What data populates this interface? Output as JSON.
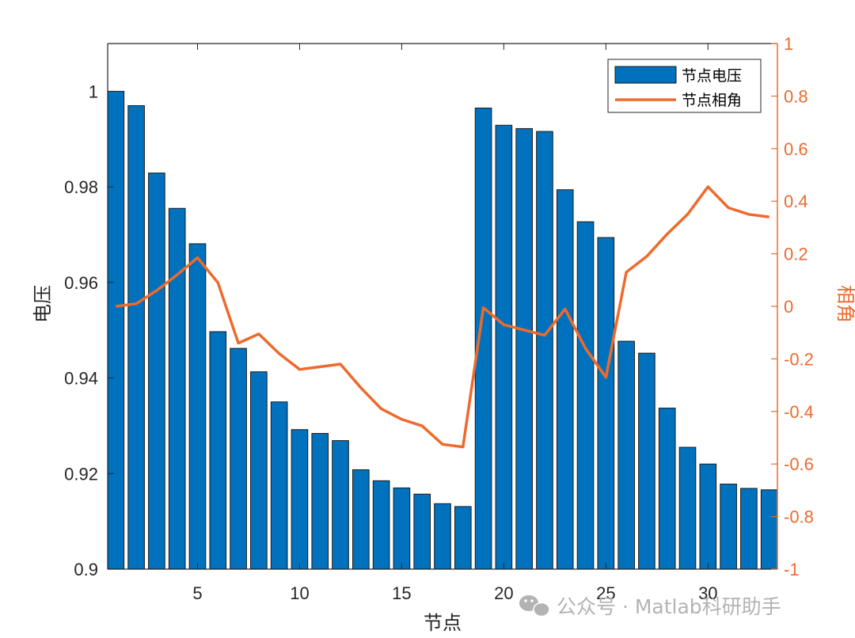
{
  "chart_data": {
    "type": "bar+line",
    "xlabel": "节点",
    "ylabel_left": "电压",
    "ylabel_right": "相角",
    "xlim": [
      0.6,
      33.4
    ],
    "ylim_left": [
      0.9,
      1.01
    ],
    "ylim_right": [
      -1,
      1
    ],
    "x_ticks": [
      5,
      10,
      15,
      20,
      25,
      30
    ],
    "y_left_ticks": [
      0.9,
      0.92,
      0.94,
      0.96,
      0.98,
      1
    ],
    "y_left_tick_labels": [
      "0.9",
      "0.92",
      "0.94",
      "0.96",
      "0.98",
      "1"
    ],
    "y_right_ticks": [
      -1,
      -0.8,
      -0.6,
      -0.4,
      -0.2,
      0,
      0.2,
      0.4,
      0.6,
      0.8,
      1
    ],
    "y_right_tick_labels": [
      "-1",
      "-0.8",
      "-0.6",
      "-0.4",
      "-0.2",
      "0",
      "0.2",
      "0.4",
      "0.6",
      "0.8",
      "1"
    ],
    "categories": [
      1,
      2,
      3,
      4,
      5,
      6,
      7,
      8,
      9,
      10,
      11,
      12,
      13,
      14,
      15,
      16,
      17,
      18,
      19,
      20,
      21,
      22,
      23,
      24,
      25,
      26,
      27,
      28,
      29,
      30,
      31,
      32,
      33
    ],
    "series": [
      {
        "name": "节点电压",
        "type": "bar",
        "axis": "left",
        "color": "#0072BD",
        "values": [
          1.0,
          0.997,
          0.9829,
          0.9755,
          0.9681,
          0.9497,
          0.9462,
          0.9413,
          0.935,
          0.9292,
          0.9284,
          0.9269,
          0.9208,
          0.9185,
          0.917,
          0.9157,
          0.9137,
          0.9131,
          0.9965,
          0.9929,
          0.9922,
          0.9916,
          0.9794,
          0.9727,
          0.9694,
          0.9477,
          0.9452,
          0.9337,
          0.9255,
          0.922,
          0.9178,
          0.9169,
          0.9166
        ]
      },
      {
        "name": "节点相角",
        "type": "line",
        "axis": "right",
        "color": "#EE6A2C",
        "values": [
          0.0,
          0.01,
          0.06,
          0.12,
          0.185,
          0.09,
          -0.14,
          -0.105,
          -0.18,
          -0.24,
          -0.23,
          -0.22,
          -0.31,
          -0.39,
          -0.43,
          -0.455,
          -0.525,
          -0.535,
          -0.005,
          -0.07,
          -0.09,
          -0.11,
          -0.01,
          -0.16,
          -0.27,
          0.13,
          0.19,
          0.275,
          0.35,
          0.455,
          0.375,
          0.35,
          0.34
        ]
      }
    ],
    "legend_position": "top-right"
  },
  "watermark": "公众号 · Matlab科研助手"
}
